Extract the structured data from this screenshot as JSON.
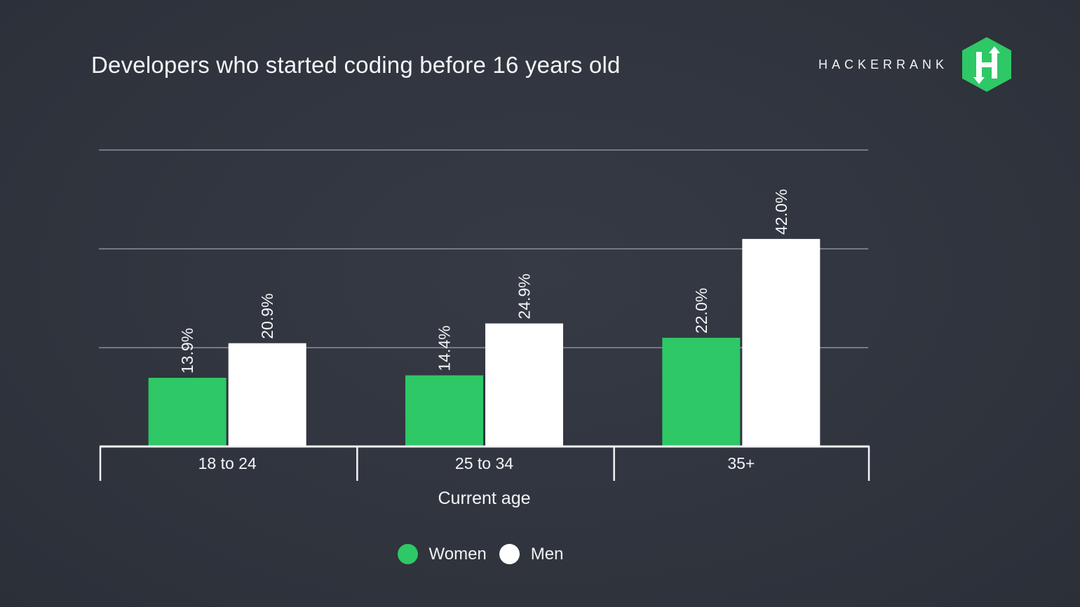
{
  "header": {
    "title": "Developers who started coding before 16 years old",
    "brand_name": "HACKERRANK",
    "brand_logo_icon": "hackerrank-hexagon-h-icon"
  },
  "colors": {
    "background": "#30343e",
    "women": "#2ec866",
    "men": "#ffffff",
    "grid": "#8a8f99",
    "axis": "#f4f5f7",
    "text": "#f4f5f7"
  },
  "chart_data": {
    "type": "bar",
    "categories": [
      "18 to 24",
      "25 to 34",
      "35+"
    ],
    "series": [
      {
        "name": "Women",
        "values": [
          13.9,
          14.4,
          22.0
        ],
        "labels": [
          "13.9%",
          "14.4%",
          "22.0%"
        ]
      },
      {
        "name": "Men",
        "values": [
          20.9,
          24.9,
          42.0
        ],
        "labels": [
          "20.9%",
          "24.9%",
          "42.0%"
        ]
      }
    ],
    "title": "Developers who started coding before 16 years old",
    "xlabel": "Current age",
    "ylabel": "",
    "ylim": [
      0,
      60
    ],
    "gridlines": [
      20,
      40,
      60
    ],
    "grid": true,
    "legend_position": "bottom-center"
  }
}
